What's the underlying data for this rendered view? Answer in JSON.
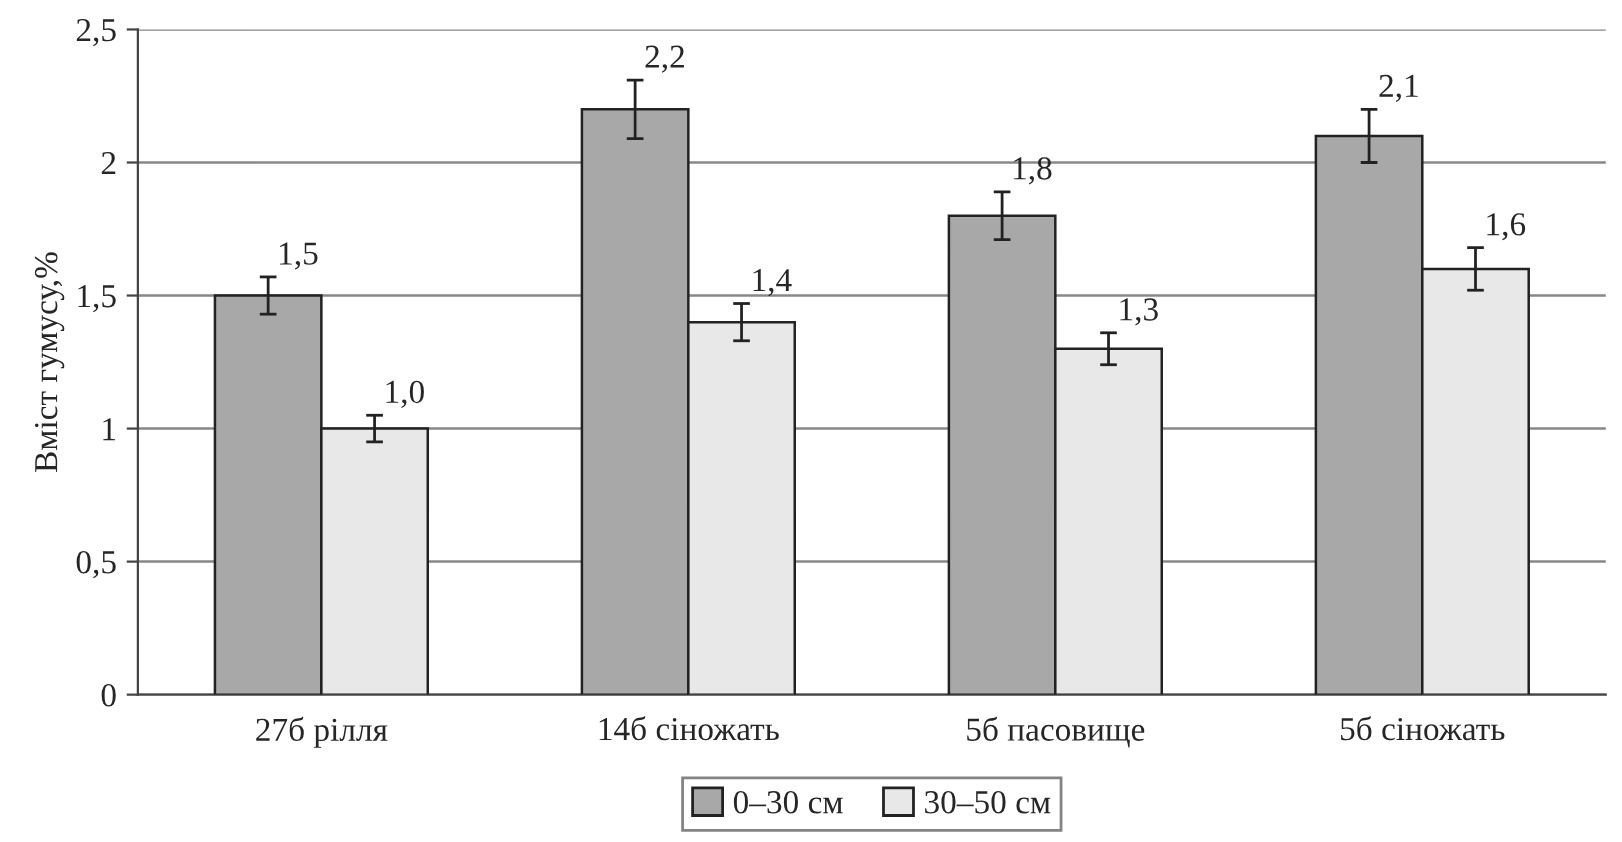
{
  "chart_data": {
    "type": "bar",
    "ylabel": "Вміст гумусу,%",
    "categories": [
      "27б рілля",
      "14б сіножать",
      "5б пасовище",
      "5б сіножать"
    ],
    "series": [
      {
        "name": "0–30 см",
        "color": "#a8a8a8",
        "values": [
          1.5,
          2.2,
          1.8,
          2.1
        ],
        "errors": [
          0.07,
          0.11,
          0.09,
          0.1
        ],
        "value_labels": [
          "1,5",
          "2,2",
          "1,8",
          "2,1"
        ]
      },
      {
        "name": "30–50 см",
        "color": "#e8e8e8",
        "values": [
          1.0,
          1.4,
          1.3,
          1.6
        ],
        "errors": [
          0.05,
          0.07,
          0.06,
          0.08
        ],
        "value_labels": [
          "1,0",
          "1,4",
          "1,3",
          "1,6"
        ]
      }
    ],
    "ylim": [
      0,
      2.5
    ],
    "yticks": [
      0,
      {
        "value": 0.5,
        "label": "0,5"
      },
      1,
      {
        "value": 1.5,
        "label": "1,5"
      },
      2,
      {
        "value": 2.5,
        "label": "2,5"
      }
    ],
    "grid": "y",
    "legend": "bottom"
  }
}
